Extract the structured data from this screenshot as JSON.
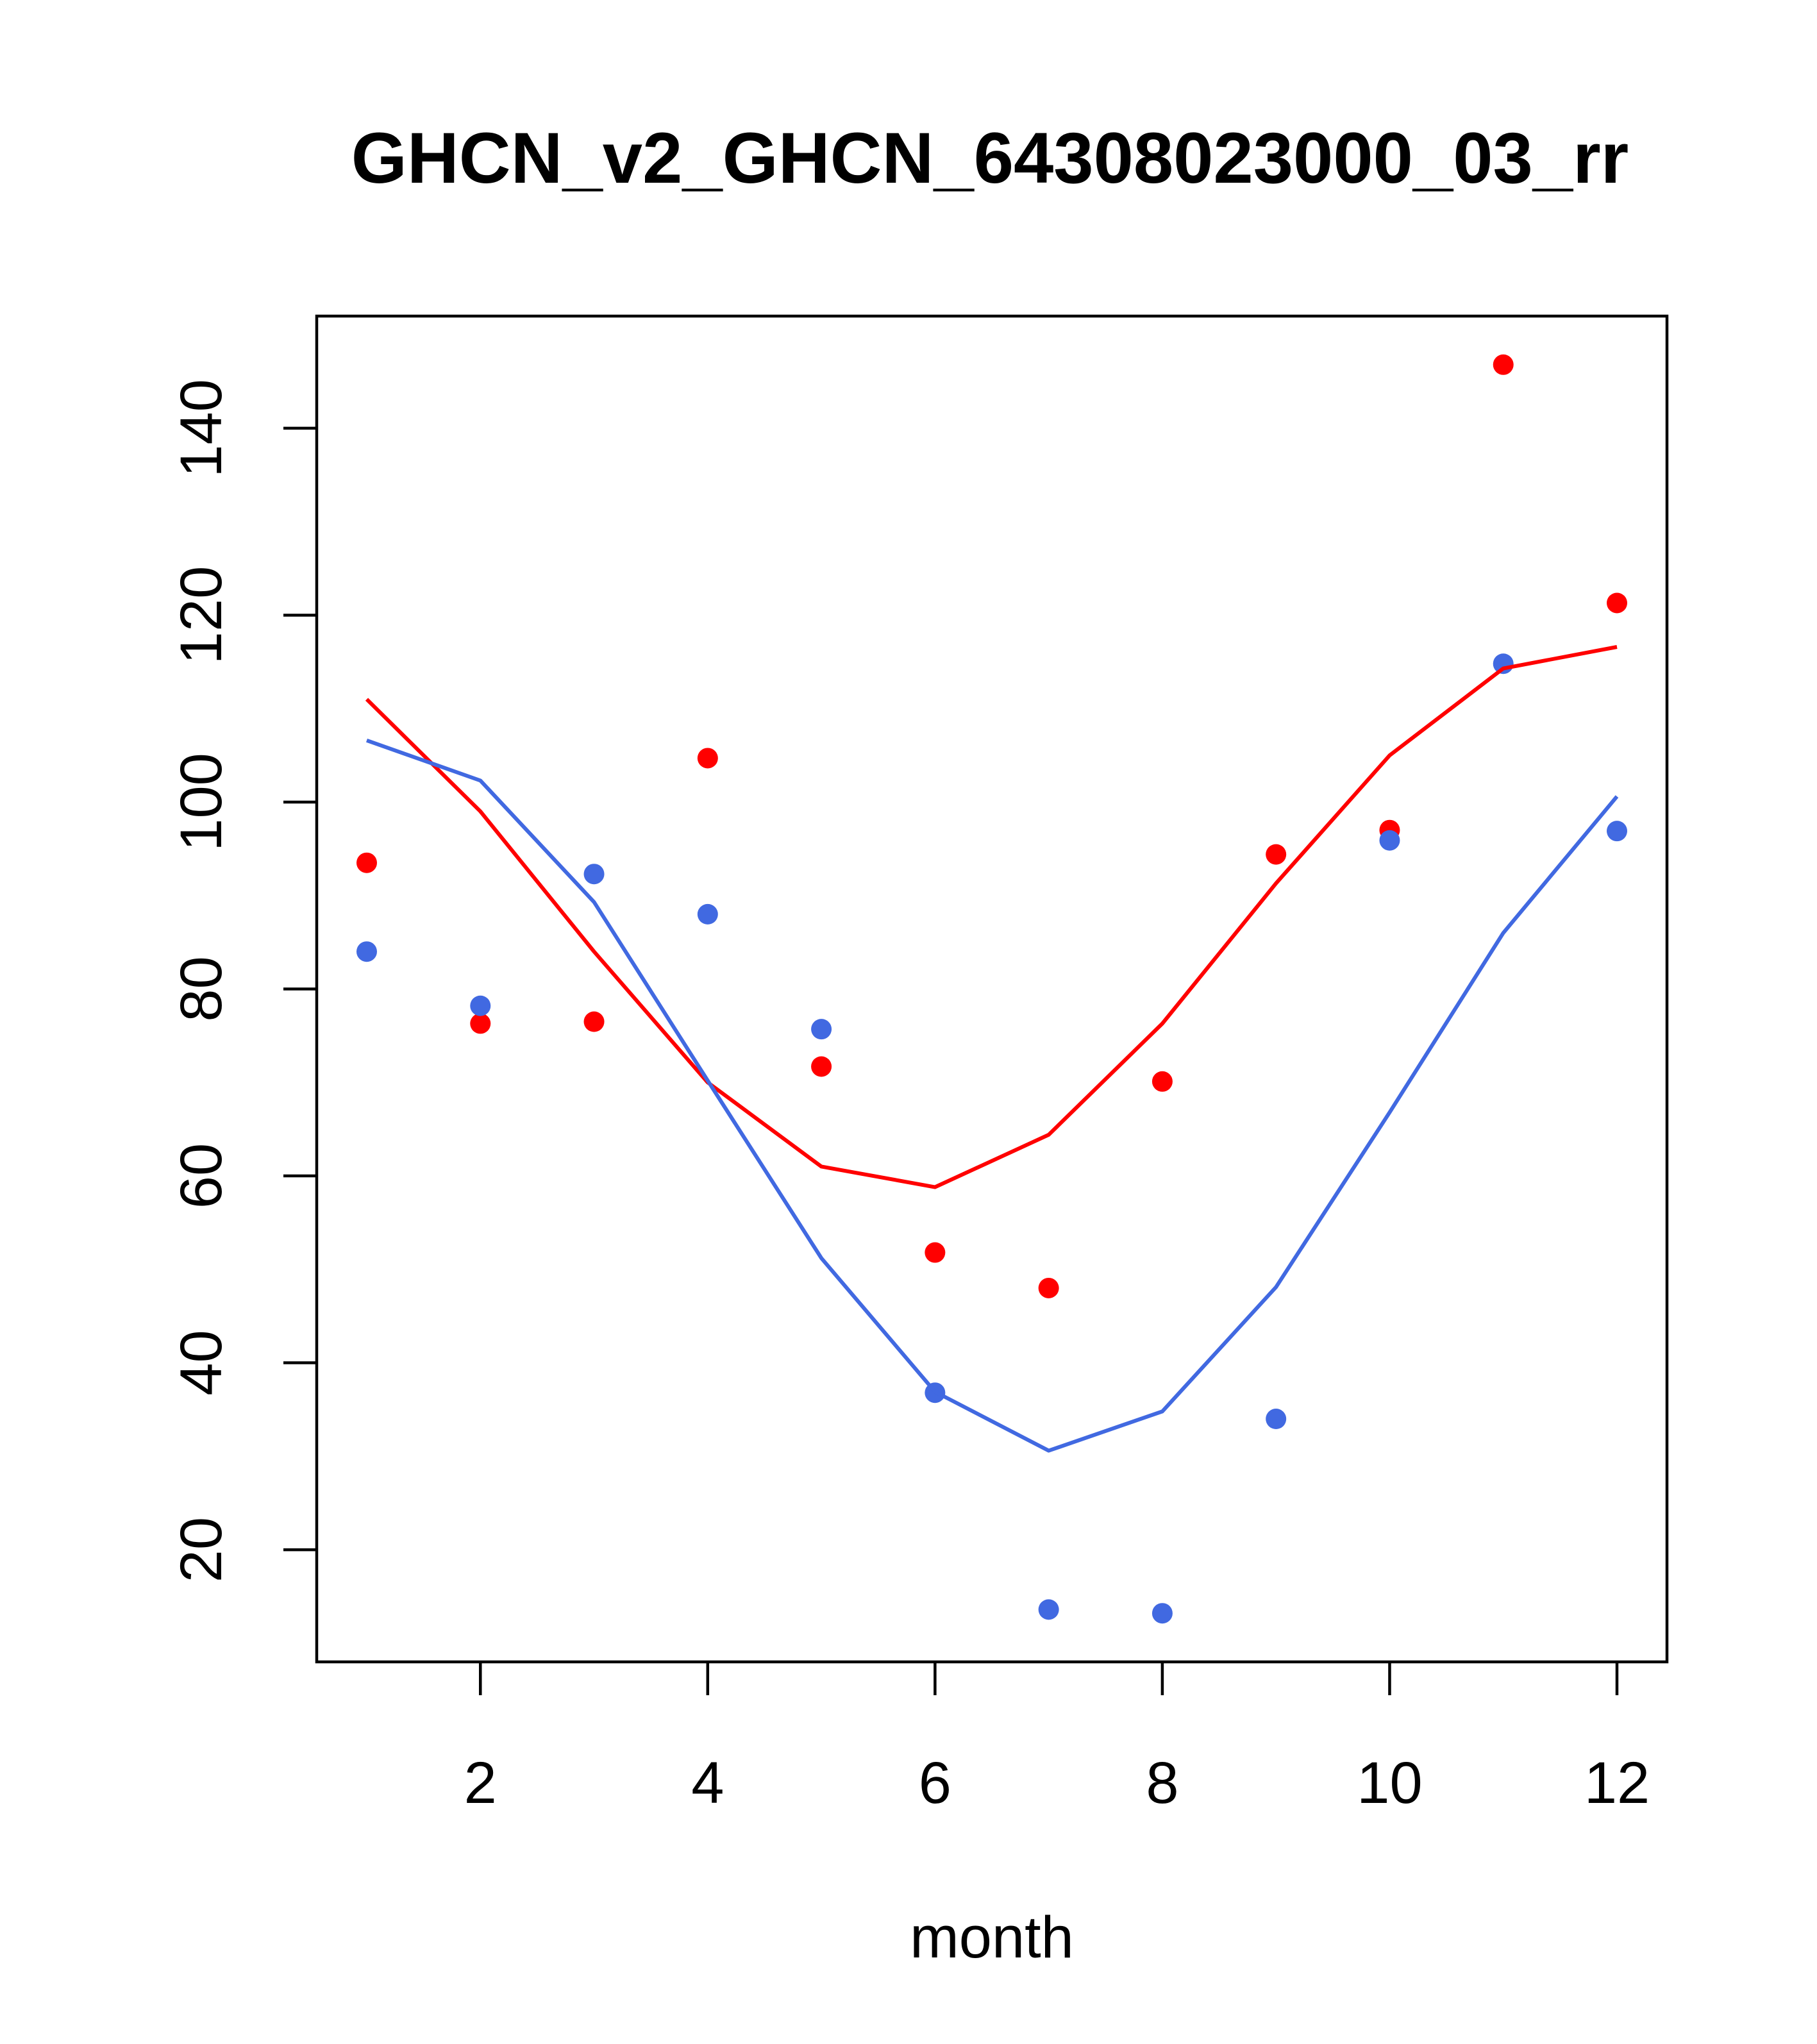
{
  "chart_data": {
    "type": "line+scatter",
    "title": "GHCN_v2_GHCN_64308023000_03_rr",
    "xlabel": "month",
    "ylabel": "",
    "xlim": [
      0.56,
      12.44
    ],
    "ylim": [
      8,
      152
    ],
    "xticks": [
      2,
      4,
      6,
      8,
      10,
      12
    ],
    "yticks": [
      20,
      40,
      60,
      80,
      100,
      120,
      140
    ],
    "grid": false,
    "x": [
      1,
      2,
      3,
      4,
      5,
      6,
      7,
      8,
      9,
      10,
      11,
      12
    ],
    "series": [
      {
        "name": "red points",
        "kind": "points",
        "color": "#ff0000",
        "values": [
          93.5,
          76.3,
          76.5,
          104.7,
          71.7,
          51.8,
          48.0,
          70.1,
          94.4,
          97.0,
          146.8,
          121.3
        ]
      },
      {
        "name": "blue points",
        "kind": "points",
        "color": "#4169e1",
        "values": [
          84.0,
          78.2,
          92.3,
          88.0,
          75.7,
          36.8,
          13.6,
          13.2,
          34.0,
          95.9,
          114.8,
          96.9
        ]
      },
      {
        "name": "red line",
        "kind": "line",
        "color": "#ff0000",
        "values": [
          111.0,
          99.0,
          84.0,
          70.0,
          61.0,
          58.8,
          64.4,
          76.3,
          91.3,
          105.0,
          114.3,
          116.6
        ]
      },
      {
        "name": "blue line",
        "kind": "line",
        "color": "#4169e1",
        "values": [
          106.6,
          102.3,
          89.3,
          70.2,
          51.2,
          36.9,
          30.6,
          34.8,
          48.1,
          66.8,
          86.0,
          100.6
        ]
      }
    ]
  }
}
